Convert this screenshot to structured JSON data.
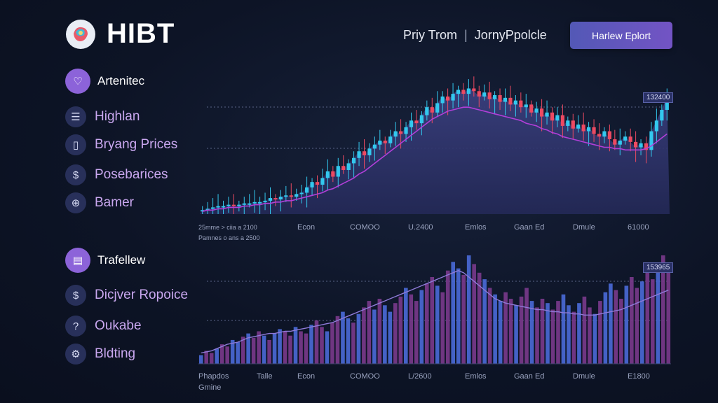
{
  "brand": {
    "name": "HIBT"
  },
  "topnav": {
    "item1": "Priy Trom",
    "separator": "|",
    "item2": "JornyPpolcle"
  },
  "cta": {
    "label": "Harlew Eplort"
  },
  "sidebar": {
    "section1": {
      "label": "Artenitec",
      "icon": "heart-icon"
    },
    "items1": [
      {
        "label": "Highlan",
        "icon": "list-icon"
      },
      {
        "label": "Bryang Prices",
        "icon": "phone-icon"
      },
      {
        "label": "Posebarices",
        "icon": "dollar-icon"
      },
      {
        "label": "Bamer",
        "icon": "globe-icon"
      }
    ],
    "section2": {
      "label": "Trafellew",
      "icon": "chart-icon"
    },
    "items2": [
      {
        "label": "Dicjver Ropoice",
        "icon": "dollar-icon"
      },
      {
        "label": "Oukabe",
        "icon": "question-icon"
      },
      {
        "label": "Bldting",
        "icon": "gear-icon"
      }
    ]
  },
  "colors": {
    "bull": "#33c8ee",
    "bear": "#ec4a62",
    "ma": "#b23fd9",
    "accent": "#8c63d9",
    "background": "#0d1426"
  },
  "chart_data": [
    {
      "type": "candlestick",
      "x_labels": [
        "Econ",
        "COMOO",
        "U.2400",
        "Emlos",
        "Gaan Ed",
        "Dmule",
        "61000"
      ],
      "legend_fragments": [
        "25mme > ciia a 2100",
        "Pamnes o ans a 2500"
      ],
      "price_tag": "132400",
      "close": [
        3,
        4,
        5,
        6,
        6,
        7,
        6,
        7,
        8,
        8,
        9,
        9,
        10,
        12,
        11,
        13,
        14,
        13,
        15,
        16,
        20,
        24,
        22,
        27,
        32,
        28,
        36,
        33,
        38,
        42,
        47,
        44,
        49,
        52,
        55,
        53,
        58,
        62,
        60,
        65,
        70,
        68,
        74,
        80,
        76,
        83,
        88,
        85,
        90,
        93,
        90,
        94,
        92,
        88,
        91,
        86,
        89,
        84,
        87,
        82,
        85,
        80,
        82,
        76,
        79,
        73,
        76,
        70,
        74,
        66,
        70,
        64,
        67,
        62,
        65,
        60,
        58,
        62,
        56,
        52,
        55,
        58,
        54,
        50,
        53,
        48,
        62,
        70,
        78,
        88
      ],
      "ma": [
        2,
        3,
        3,
        4,
        4,
        5,
        5,
        5,
        6,
        6,
        7,
        7,
        8,
        8,
        9,
        9,
        10,
        10,
        11,
        12,
        13,
        14,
        15,
        16,
        18,
        19,
        21,
        23,
        25,
        27,
        30,
        32,
        35,
        38,
        41,
        44,
        47,
        50,
        53,
        56,
        59,
        62,
        65,
        68,
        71,
        73,
        75,
        77,
        78,
        79,
        80,
        80,
        79,
        78,
        77,
        76,
        75,
        74,
        73,
        72,
        71,
        70,
        68,
        67,
        66,
        64,
        63,
        61,
        60,
        58,
        57,
        56,
        55,
        54,
        53,
        52,
        51,
        50,
        50,
        49,
        49,
        48,
        48,
        48,
        48,
        49,
        51,
        54,
        57,
        60
      ]
    },
    {
      "type": "bar",
      "x_labels": [
        "Phapdos",
        "Talle",
        "Econ",
        "COMOO",
        "L/2600",
        "Emlos",
        "Gaan Ed",
        "Dmule",
        "E1800"
      ],
      "extra_labels": [
        "Gmine"
      ],
      "price_tag": "153965",
      "values": [
        8,
        12,
        10,
        14,
        18,
        16,
        22,
        20,
        25,
        28,
        24,
        30,
        26,
        22,
        28,
        32,
        30,
        26,
        34,
        30,
        28,
        36,
        40,
        34,
        30,
        38,
        44,
        48,
        42,
        38,
        46,
        52,
        58,
        50,
        60,
        54,
        48,
        56,
        62,
        70,
        64,
        58,
        68,
        74,
        80,
        72,
        66,
        86,
        94,
        88,
        82,
        100,
        92,
        84,
        78,
        70,
        64,
        58,
        66,
        60,
        54,
        62,
        70,
        58,
        52,
        60,
        56,
        50,
        58,
        64,
        54,
        48,
        56,
        62,
        52,
        46,
        58,
        66,
        74,
        68,
        60,
        72,
        80,
        70,
        76,
        86,
        78,
        90,
        100,
        88
      ],
      "line": [
        10,
        11,
        12,
        14,
        16,
        18,
        19,
        20,
        22,
        24,
        25,
        26,
        27,
        28,
        28,
        29,
        30,
        30,
        31,
        32,
        33,
        34,
        35,
        36,
        37,
        38,
        40,
        42,
        44,
        46,
        48,
        50,
        52,
        54,
        56,
        58,
        60,
        62,
        64,
        66,
        68,
        70,
        72,
        74,
        76,
        78,
        80,
        82,
        84,
        86,
        84,
        80,
        76,
        72,
        68,
        64,
        60,
        58,
        56,
        55,
        54,
        53,
        52,
        51,
        50,
        50,
        49,
        48,
        48,
        47,
        47,
        46,
        46,
        45,
        45,
        45,
        46,
        47,
        48,
        49,
        50,
        52,
        54,
        56,
        58,
        60,
        62,
        64,
        66,
        68
      ]
    }
  ]
}
